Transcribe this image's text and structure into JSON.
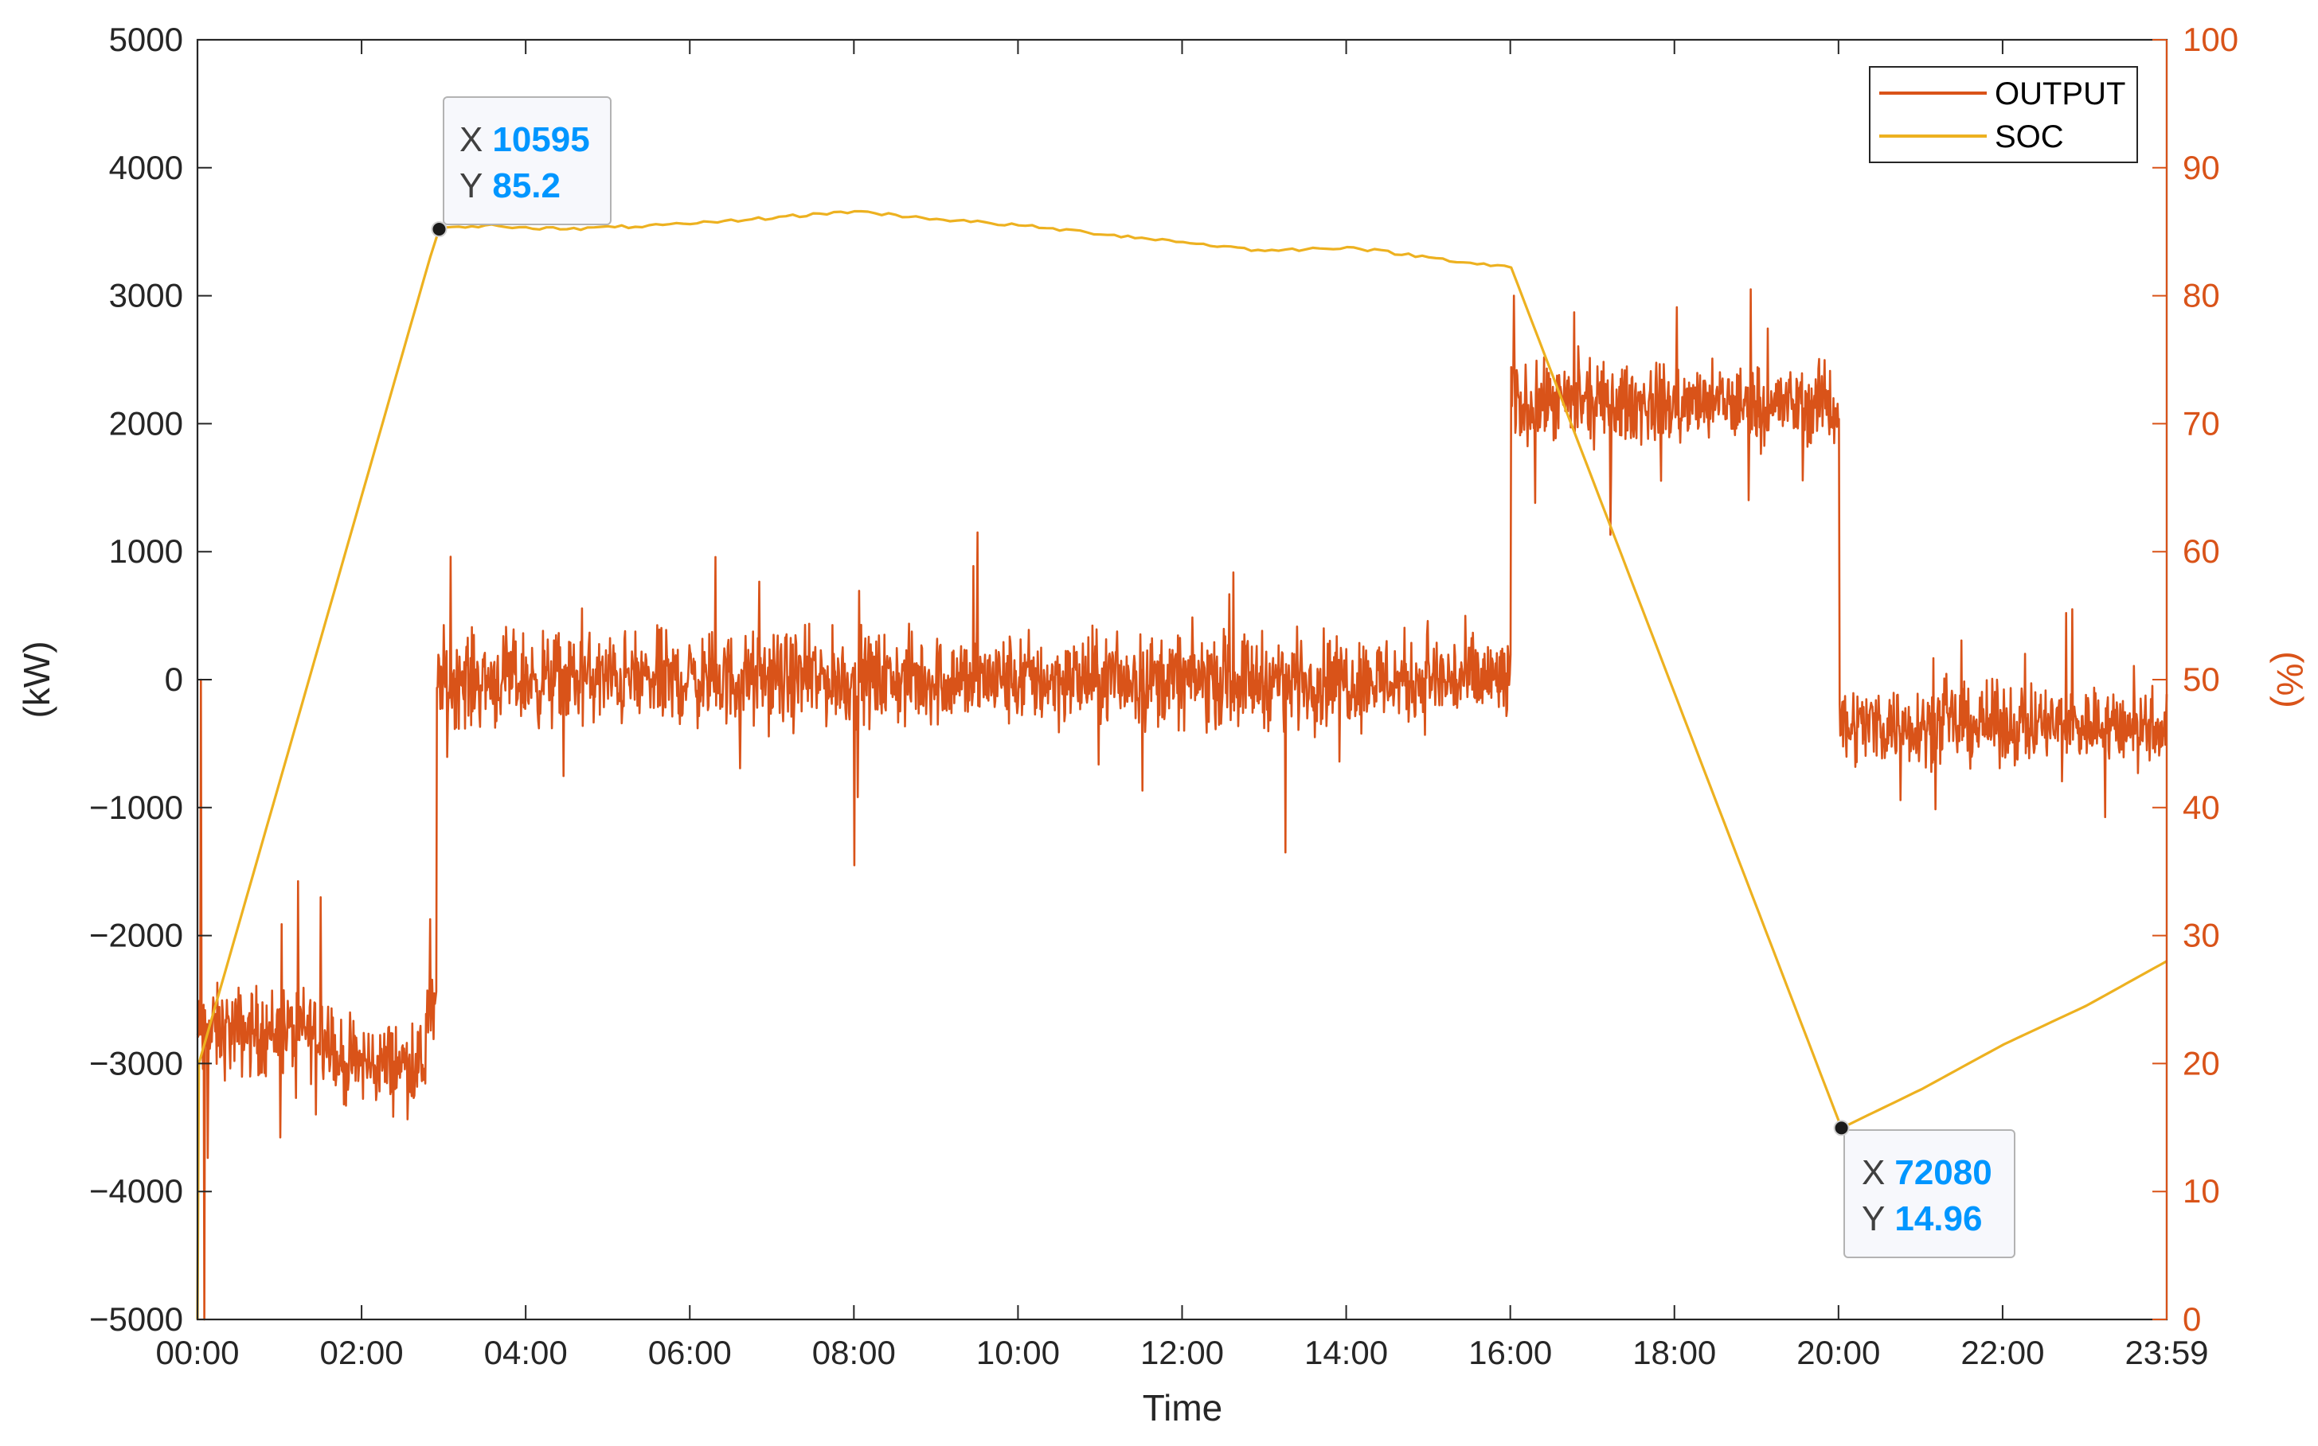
{
  "chart_data": {
    "type": "line",
    "xlabel": "Time",
    "x_ticks": [
      "00:00",
      "02:00",
      "04:00",
      "06:00",
      "08:00",
      "10:00",
      "12:00",
      "14:00",
      "16:00",
      "18:00",
      "20:00",
      "22:00",
      "23:59"
    ],
    "xlim_seconds": [
      0,
      86340
    ],
    "left_axis": {
      "label": "(kW)",
      "ylim": [
        -5000,
        5000
      ],
      "ticks": [
        "−5000",
        "−4000",
        "−3000",
        "−2000",
        "−1000",
        "0",
        "1000",
        "2000",
        "3000",
        "4000",
        "5000"
      ],
      "color": "#000000"
    },
    "right_axis": {
      "label": "(%)",
      "ylim": [
        0,
        100
      ],
      "ticks": [
        "0",
        "10",
        "20",
        "30",
        "40",
        "50",
        "60",
        "70",
        "80",
        "90",
        "100"
      ],
      "color": "#D95319"
    },
    "grid": false,
    "legend": {
      "placement": "top-right",
      "entries": [
        "OUTPUT",
        "SOC"
      ]
    },
    "series": [
      {
        "name": "OUTPUT",
        "axis": "left",
        "color": "#D95319",
        "note_segments": "noisy power output; values are mean levels with noise amplitude",
        "segments": [
          {
            "x_start": 0,
            "x_end": 600,
            "mean": -2800,
            "noise": 350
          },
          {
            "x_start": 600,
            "x_end": 6000,
            "mean": -2750,
            "noise": 320
          },
          {
            "x_start": 6000,
            "x_end": 10000,
            "mean": -3000,
            "noise": 300
          },
          {
            "x_start": 10000,
            "x_end": 10500,
            "mean": -2600,
            "noise": 300
          },
          {
            "x_start": 10500,
            "x_end": 57600,
            "mean": 0,
            "noise": 330
          },
          {
            "x_start": 57600,
            "x_end": 72000,
            "mean": 2150,
            "noise": 280
          },
          {
            "x_start": 72000,
            "x_end": 86340,
            "mean": -350,
            "noise": 280
          }
        ],
        "extremes": [
          {
            "x": 150,
            "y": 0
          },
          {
            "x": 300,
            "y": -5000
          },
          {
            "x": 5400,
            "y": -1700
          },
          {
            "x": 28800,
            "y": -1450
          },
          {
            "x": 34200,
            "y": 1150
          },
          {
            "x": 47700,
            "y": -1350
          },
          {
            "x": 57720,
            "y": 3000
          },
          {
            "x": 68100,
            "y": 3050
          },
          {
            "x": 82200,
            "y": 550
          }
        ]
      },
      {
        "name": "SOC",
        "axis": "right",
        "color": "#EDB120",
        "points": [
          [
            0,
            0
          ],
          [
            60,
            20
          ],
          [
            10200,
            83
          ],
          [
            10595,
            85.2
          ],
          [
            12600,
            85.5
          ],
          [
            16200,
            85.2
          ],
          [
            21600,
            85.6
          ],
          [
            28800,
            86.6
          ],
          [
            32400,
            86.0
          ],
          [
            36000,
            85.5
          ],
          [
            43200,
            84.2
          ],
          [
            46800,
            83.5
          ],
          [
            50400,
            83.8
          ],
          [
            54000,
            83.0
          ],
          [
            57600,
            82.2
          ],
          [
            72080,
            14.96
          ],
          [
            75600,
            18
          ],
          [
            79200,
            21.5
          ],
          [
            82800,
            24.5
          ],
          [
            86340,
            28
          ]
        ]
      }
    ],
    "datatips": [
      {
        "x_label": "X",
        "x": "10595",
        "y_label": "Y",
        "y": "85.2"
      },
      {
        "x_label": "X",
        "x": "72080",
        "y_label": "Y",
        "y": "14.96"
      }
    ],
    "colors": {
      "output": "#D95319",
      "soc": "#EDB120",
      "tip_value": "#0096FF",
      "axis": "#262626"
    }
  }
}
